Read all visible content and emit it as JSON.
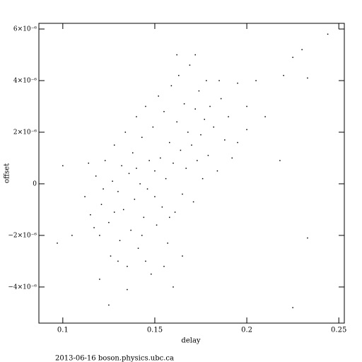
{
  "chart_data": {
    "type": "scatter",
    "x_label": "delay",
    "y_label": "offset",
    "footer": "2013-06-16 boson.physics.ubc.ca",
    "color": "#000000",
    "xlim": [
      0.087,
      0.253
    ],
    "ylim": [
      -5.4e-06,
      6.22e-06
    ],
    "xticks": [
      0.1,
      0.15,
      0.2,
      0.25
    ],
    "yticks": [
      {
        "value": -4e-06,
        "label": "−4×10⁻⁶"
      },
      {
        "value": -2e-06,
        "label": "−2×10⁻⁶"
      },
      0,
      {
        "value": 2e-06,
        "label": "2×10⁻⁶"
      },
      {
        "value": 4e-06,
        "label": "4×10⁻⁶"
      },
      {
        "value": 6e-06,
        "label": "6×10⁻⁶"
      }
    ],
    "x": [
      0.112,
      0.115,
      0.118,
      0.12,
      0.121,
      0.123,
      0.125,
      0.126,
      0.127,
      0.128,
      0.13,
      0.131,
      0.132,
      0.133,
      0.134,
      0.135,
      0.136,
      0.137,
      0.138,
      0.139,
      0.14,
      0.141,
      0.142,
      0.143,
      0.144,
      0.145,
      0.146,
      0.147,
      0.148,
      0.149,
      0.15,
      0.151,
      0.152,
      0.153,
      0.154,
      0.155,
      0.156,
      0.157,
      0.158,
      0.159,
      0.16,
      0.161,
      0.162,
      0.163,
      0.164,
      0.165,
      0.166,
      0.167,
      0.168,
      0.169,
      0.17,
      0.171,
      0.172,
      0.173,
      0.174,
      0.175,
      0.176,
      0.177,
      0.178,
      0.179,
      0.18,
      0.182,
      0.184,
      0.186,
      0.188,
      0.19,
      0.192,
      0.195,
      0.2,
      0.2,
      0.205,
      0.21,
      0.22,
      0.225,
      0.23,
      0.233,
      0.244,
      0.233,
      0.225,
      0.218,
      0.1,
      0.097,
      0.105,
      0.12,
      0.125,
      0.135,
      0.16,
      0.155,
      0.165,
      0.145,
      0.13,
      0.117,
      0.122,
      0.114,
      0.128,
      0.14,
      0.15,
      0.143,
      0.158,
      0.162,
      0.172,
      0.185,
      0.195
    ],
    "values": [
      -5e-07,
      -1.2e-06,
      3e-07,
      -2e-06,
      -8e-07,
      9e-07,
      -1.5e-06,
      -2.8e-06,
      1e-07,
      1.5e-06,
      -3e-07,
      -2.2e-06,
      7e-07,
      -1e-06,
      2e-06,
      -3.2e-06,
      4e-07,
      -1.8e-06,
      1.2e-06,
      -6e-07,
      2.6e-06,
      -2.5e-06,
      0,
      1.8e-06,
      -1.3e-06,
      3e-06,
      -2e-07,
      9e-07,
      -3.5e-06,
      2.2e-06,
      5e-07,
      -1.6e-06,
      3.4e-06,
      1e-06,
      -9e-07,
      2.8e-06,
      2e-07,
      -2.3e-06,
      1.6e-06,
      3.8e-06,
      8e-07,
      -1.1e-06,
      2.4e-06,
      4.2e-06,
      1.3e-06,
      -4e-07,
      3.1e-06,
      6e-07,
      2e-06,
      4.6e-06,
      1.5e-06,
      -7e-07,
      2.9e-06,
      9e-07,
      3.6e-06,
      1.9e-06,
      2e-07,
      2.5e-06,
      4e-06,
      1.1e-06,
      3e-06,
      2.2e-06,
      5e-07,
      3.3e-06,
      1.7e-06,
      2.6e-06,
      1e-06,
      3.9e-06,
      2.1e-06,
      3e-06,
      4e-06,
      2.6e-06,
      4.2e-06,
      4.9e-06,
      5.2e-06,
      4.1e-06,
      5.8e-06,
      -2.1e-06,
      -4.8e-06,
      9e-07,
      7e-07,
      -2.3e-06,
      -2e-06,
      -3.7e-06,
      -4.7e-06,
      -4.1e-06,
      -4e-06,
      -3.2e-06,
      -2.8e-06,
      -3e-06,
      -3e-06,
      -1.7e-06,
      -2e-07,
      8e-07,
      -1.1e-06,
      6e-07,
      -5e-07,
      -2e-06,
      -1.3e-06,
      5e-06,
      5e-06,
      4e-06,
      1.6e-06
    ]
  }
}
